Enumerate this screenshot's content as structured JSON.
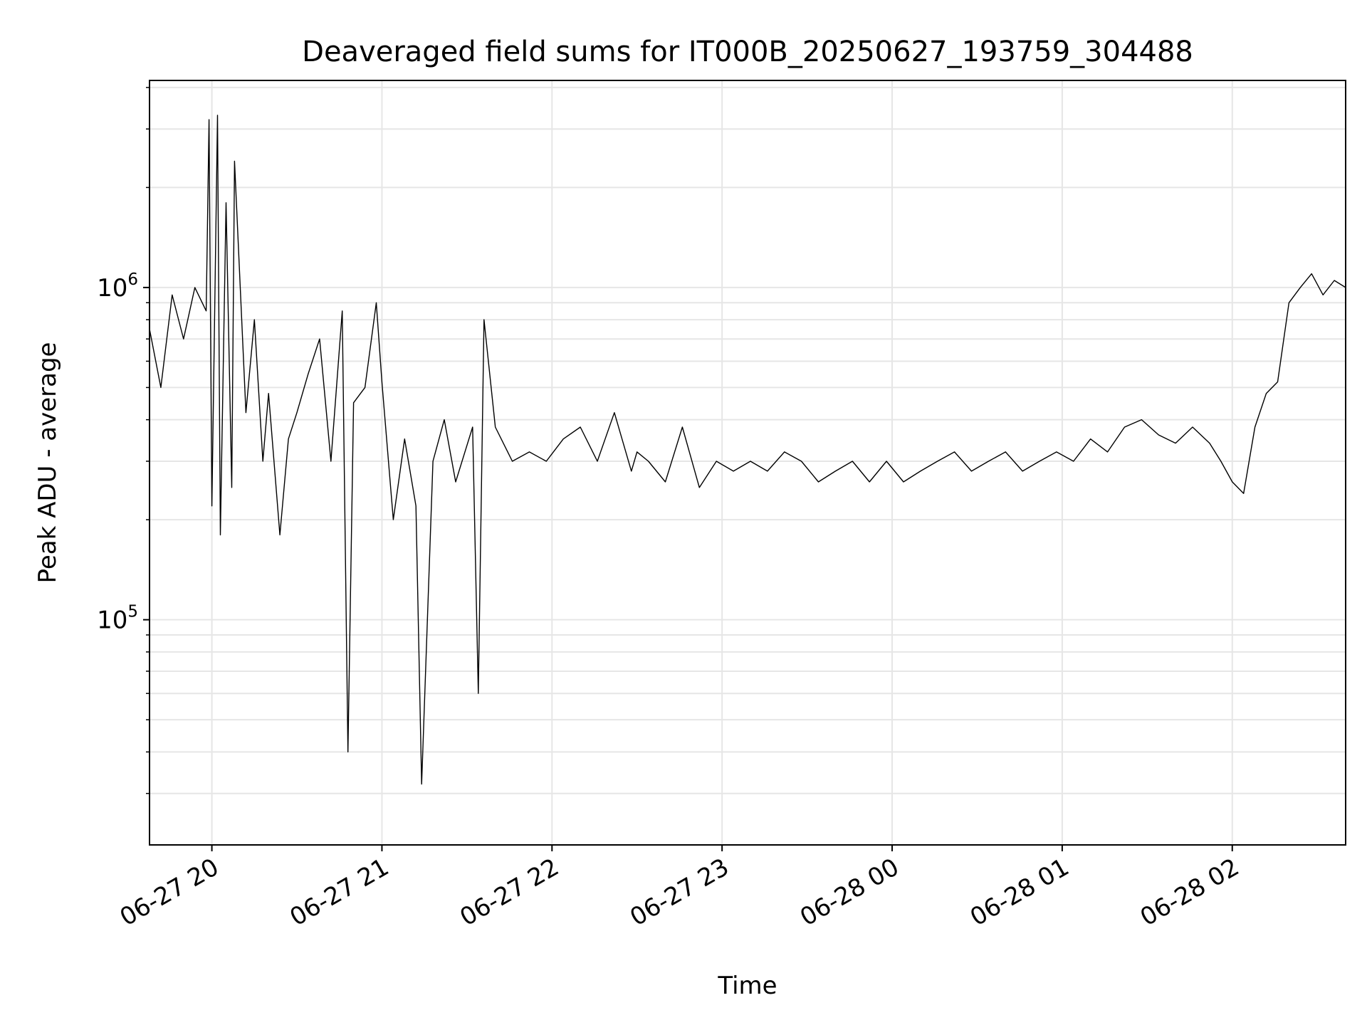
{
  "chart_data": {
    "type": "line",
    "title": "Deaveraged field sums for IT000B_20250627_193759_304488",
    "xlabel": "Time",
    "ylabel": "Peak ADU - average",
    "yscale": "log",
    "ylim": [
      21000,
      4200000
    ],
    "xlim": [
      "2025-06-27 19:38",
      "2025-06-28 02:40"
    ],
    "x_ticks": [
      {
        "value": "2025-06-27 20:00",
        "label": "06-27 20"
      },
      {
        "value": "2025-06-27 21:00",
        "label": "06-27 21"
      },
      {
        "value": "2025-06-27 22:00",
        "label": "06-27 22"
      },
      {
        "value": "2025-06-27 23:00",
        "label": "06-27 23"
      },
      {
        "value": "2025-06-28 00:00",
        "label": "06-28 00"
      },
      {
        "value": "2025-06-28 01:00",
        "label": "06-28 01"
      },
      {
        "value": "2025-06-28 02:00",
        "label": "06-28 02"
      }
    ],
    "y_ticks": [
      {
        "value": 100000,
        "base": "10",
        "exponent": "5"
      },
      {
        "value": 1000000,
        "base": "10",
        "exponent": "6"
      }
    ],
    "grid": true,
    "line_color": "#000000",
    "grid_color": "#e6e6e6",
    "series": [
      {
        "x": [
          "2025-06-27 19:38",
          "2025-06-27 19:42",
          "2025-06-27 19:46",
          "2025-06-27 19:50",
          "2025-06-27 19:54",
          "2025-06-27 19:58",
          "2025-06-27 19:59",
          "2025-06-27 20:00",
          "2025-06-27 20:02",
          "2025-06-27 20:03",
          "2025-06-27 20:05",
          "2025-06-27 20:07",
          "2025-06-27 20:08",
          "2025-06-27 20:12",
          "2025-06-27 20:15",
          "2025-06-27 20:18",
          "2025-06-27 20:20",
          "2025-06-27 20:24",
          "2025-06-27 20:27",
          "2025-06-27 20:30",
          "2025-06-27 20:34",
          "2025-06-27 20:38",
          "2025-06-27 20:42",
          "2025-06-27 20:46",
          "2025-06-27 20:48",
          "2025-06-27 20:50",
          "2025-06-27 20:54",
          "2025-06-27 20:58",
          "2025-06-27 21:00",
          "2025-06-27 21:04",
          "2025-06-27 21:08",
          "2025-06-27 21:12",
          "2025-06-27 21:14",
          "2025-06-27 21:18",
          "2025-06-27 21:22",
          "2025-06-27 21:26",
          "2025-06-27 21:32",
          "2025-06-27 21:34",
          "2025-06-27 21:36",
          "2025-06-27 21:40",
          "2025-06-27 21:46",
          "2025-06-27 21:52",
          "2025-06-27 21:58",
          "2025-06-27 22:04",
          "2025-06-27 22:10",
          "2025-06-27 22:16",
          "2025-06-27 22:22",
          "2025-06-27 22:28",
          "2025-06-27 22:30",
          "2025-06-27 22:34",
          "2025-06-27 22:40",
          "2025-06-27 22:46",
          "2025-06-27 22:52",
          "2025-06-27 22:58",
          "2025-06-27 23:04",
          "2025-06-27 23:10",
          "2025-06-27 23:16",
          "2025-06-27 23:22",
          "2025-06-27 23:28",
          "2025-06-27 23:34",
          "2025-06-27 23:40",
          "2025-06-27 23:46",
          "2025-06-27 23:52",
          "2025-06-27 23:58",
          "2025-06-28 00:04",
          "2025-06-28 00:10",
          "2025-06-28 00:16",
          "2025-06-28 00:22",
          "2025-06-28 00:28",
          "2025-06-28 00:34",
          "2025-06-28 00:40",
          "2025-06-28 00:46",
          "2025-06-28 00:52",
          "2025-06-28 00:58",
          "2025-06-28 01:04",
          "2025-06-28 01:10",
          "2025-06-28 01:16",
          "2025-06-28 01:22",
          "2025-06-28 01:28",
          "2025-06-28 01:34",
          "2025-06-28 01:40",
          "2025-06-28 01:46",
          "2025-06-28 01:52",
          "2025-06-28 01:56",
          "2025-06-28 02:00",
          "2025-06-28 02:04",
          "2025-06-28 02:08",
          "2025-06-28 02:12",
          "2025-06-28 02:16",
          "2025-06-28 02:20",
          "2025-06-28 02:24",
          "2025-06-28 02:28",
          "2025-06-28 02:32",
          "2025-06-28 02:36",
          "2025-06-28 02:40"
        ],
        "y": [
          750000,
          500000,
          950000,
          700000,
          1000000,
          850000,
          3200000,
          220000,
          3300000,
          180000,
          1800000,
          250000,
          2400000,
          420000,
          800000,
          300000,
          480000,
          180000,
          350000,
          420000,
          550000,
          700000,
          300000,
          850000,
          40000,
          450000,
          500000,
          900000,
          520000,
          200000,
          350000,
          220000,
          32000,
          300000,
          400000,
          260000,
          380000,
          60000,
          800000,
          380000,
          300000,
          320000,
          300000,
          350000,
          380000,
          300000,
          420000,
          280000,
          320000,
          300000,
          260000,
          380000,
          250000,
          300000,
          280000,
          300000,
          280000,
          320000,
          300000,
          260000,
          280000,
          300000,
          260000,
          300000,
          260000,
          280000,
          300000,
          320000,
          280000,
          300000,
          320000,
          280000,
          300000,
          320000,
          300000,
          350000,
          320000,
          380000,
          400000,
          360000,
          340000,
          380000,
          340000,
          300000,
          260000,
          240000,
          380000,
          480000,
          520000,
          900000,
          1000000,
          1100000,
          950000,
          1050000,
          1000000
        ]
      }
    ]
  }
}
